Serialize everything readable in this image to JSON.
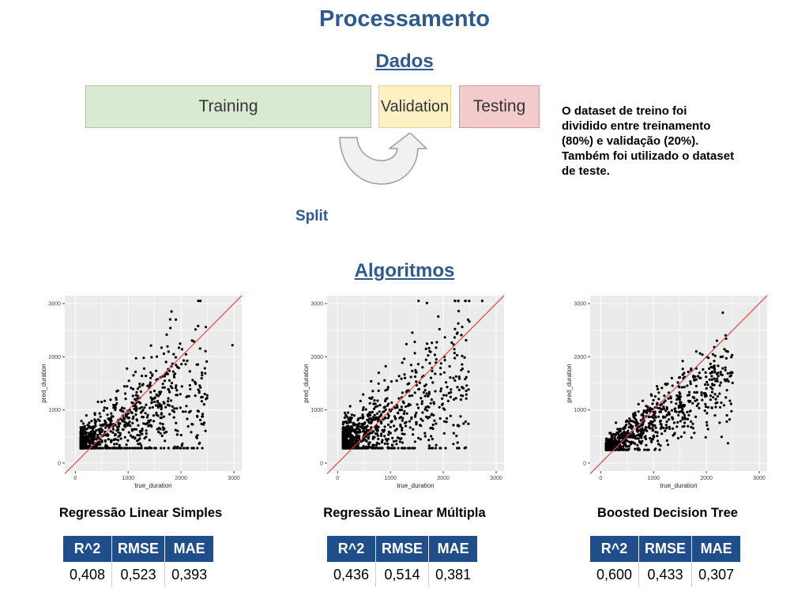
{
  "title": "Processamento",
  "dados_heading": "Dados",
  "blocks": {
    "training": "Training",
    "validation": "Validation",
    "testing": "Testing"
  },
  "split_label": "Split",
  "note": "O dataset de treino foi dividido entre treinamento (80%) e validação (20%). Também foi utilizado o dataset de teste.",
  "algoritmos_heading": "Algoritmos",
  "colors": {
    "title": "#2e5a8f",
    "table_header": "#1f4e8a",
    "training": "#d9ead3",
    "validation": "#fdf0c4",
    "testing": "#f2cccc",
    "ref_line": "#e8433b",
    "panel": "#ebebeb"
  },
  "metric_headers": [
    "R^2",
    "RMSE",
    "MAE"
  ],
  "models": [
    {
      "name": "Regressão Linear Simples",
      "metrics": [
        "0,408",
        "0,523",
        "0,393"
      ]
    },
    {
      "name": "Regressão Linear Múltipla",
      "metrics": [
        "0,436",
        "0,514",
        "0,381"
      ]
    },
    {
      "name": "Boosted Decision Tree",
      "metrics": [
        "0,600",
        "0,433",
        "0,307"
      ]
    }
  ],
  "chart_data": [
    {
      "type": "scatter",
      "xlabel": "true_duration",
      "ylabel": "pred_duration",
      "x_ticks": [
        "0",
        "1000",
        "2000",
        "3000"
      ],
      "y_ticks": [
        "0",
        "1000",
        "2000",
        "3000"
      ],
      "xlim": [
        -200,
        3150
      ],
      "ylim": [
        -150,
        3150
      ],
      "grid": true,
      "reference_line": "y = x",
      "cloud": {
        "pred_base": 330,
        "slope": 0.42,
        "spread": 0.55,
        "n": 900
      }
    },
    {
      "type": "scatter",
      "xlabel": "true_duration",
      "ylabel": "pred_duration",
      "x_ticks": [
        "0",
        "1000",
        "2000",
        "3000"
      ],
      "y_ticks": [
        "0",
        "1000",
        "2000",
        "3000"
      ],
      "xlim": [
        -200,
        3150
      ],
      "ylim": [
        -150,
        3150
      ],
      "grid": true,
      "reference_line": "y = x",
      "cloud": {
        "pred_base": 330,
        "slope": 0.5,
        "spread": 0.6,
        "n": 900
      }
    },
    {
      "type": "scatter",
      "xlabel": "true_duration",
      "ylabel": "pred_duration",
      "x_ticks": [
        "0",
        "1000",
        "2000",
        "3000"
      ],
      "y_ticks": [
        "0",
        "1000",
        "2000",
        "3000"
      ],
      "xlim": [
        -200,
        3150
      ],
      "ylim": [
        -150,
        3150
      ],
      "grid": true,
      "reference_line": "y = x",
      "cloud": {
        "pred_base": 180,
        "slope": 0.62,
        "spread": 0.33,
        "n": 900
      }
    }
  ]
}
